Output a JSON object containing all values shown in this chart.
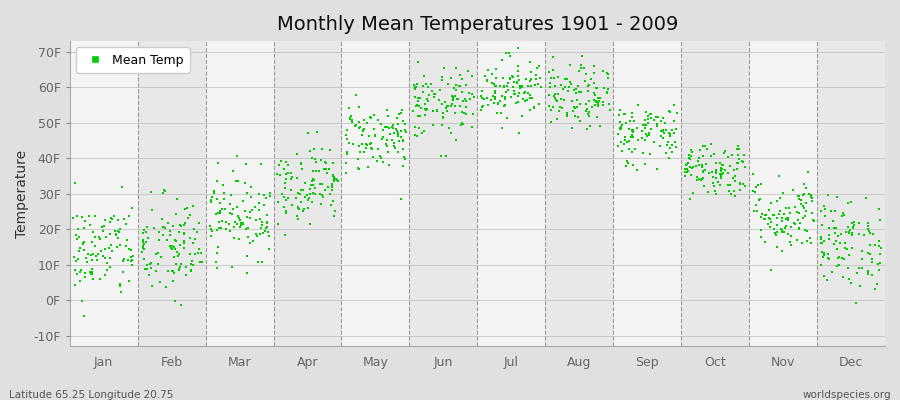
{
  "title": "Monthly Mean Temperatures 1901 - 2009",
  "ylabel": "Temperature",
  "xlabel_bottom_left": "Latitude 65.25 Longitude 20.75",
  "xlabel_bottom_right": "worldspecies.org",
  "legend_label": "Mean Temp",
  "dot_color": "#00cc00",
  "bg_color": "#e0e0e0",
  "plot_bg_color_odd": "#e8e8e8",
  "plot_bg_color_even": "#f4f4f4",
  "ylim": [
    -13,
    73
  ],
  "yticks": [
    -10,
    0,
    10,
    20,
    30,
    40,
    50,
    60,
    70
  ],
  "ytick_labels": [
    "-10F",
    "0F",
    "10F",
    "20F",
    "30F",
    "40F",
    "50F",
    "60F",
    "70F"
  ],
  "months": [
    "Jan",
    "Feb",
    "Mar",
    "Apr",
    "May",
    "Jun",
    "Jul",
    "Aug",
    "Sep",
    "Oct",
    "Nov",
    "Dec"
  ],
  "monthly_means_f": [
    14.0,
    14.5,
    24.0,
    33.0,
    46.0,
    55.0,
    60.0,
    57.0,
    47.0,
    37.0,
    24.0,
    16.0
  ],
  "monthly_std_f": [
    7.0,
    7.5,
    6.0,
    5.5,
    5.0,
    5.0,
    4.5,
    4.5,
    4.5,
    4.0,
    5.5,
    6.5
  ],
  "n_years": 109,
  "seed": 42,
  "dot_size": 3
}
